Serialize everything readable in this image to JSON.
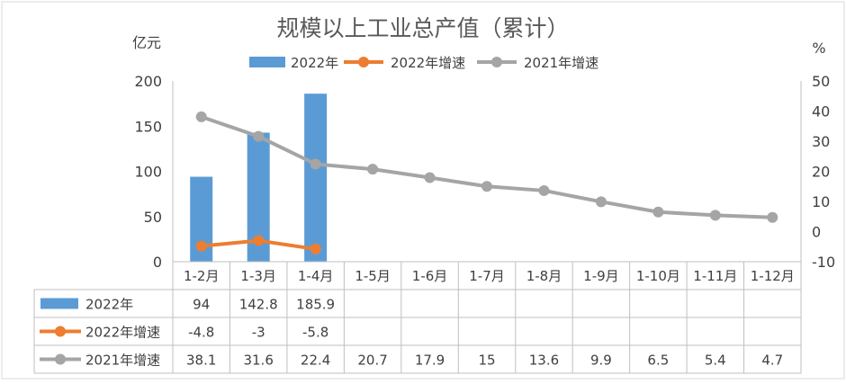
{
  "chart_data": {
    "type": "bar",
    "title": "规模以上工业总产值（累计）",
    "y_left_label": "亿元",
    "y_right_label": "%",
    "ylim_left": [
      0,
      200
    ],
    "ylim_right": [
      -10,
      50
    ],
    "yticks_left": [
      0,
      50,
      100,
      150,
      200
    ],
    "yticks_right": [
      -10,
      0,
      10,
      20,
      30,
      40,
      50
    ],
    "categories": [
      "1-2月",
      "1-3月",
      "1-4月",
      "1-5月",
      "1-6月",
      "1-7月",
      "1-8月",
      "1-9月",
      "1-10月",
      "1-11月",
      "1-12月"
    ],
    "series": [
      {
        "name": "2022年",
        "type": "bar",
        "axis": "left",
        "color": "#5B9BD5",
        "values": [
          94,
          142.8,
          185.9,
          null,
          null,
          null,
          null,
          null,
          null,
          null,
          null
        ],
        "display": [
          "94",
          "142.8",
          "185.9",
          "",
          "",
          "",
          "",
          "",
          "",
          "",
          ""
        ]
      },
      {
        "name": "2022年增速",
        "type": "line",
        "axis": "right",
        "color": "#ED7D31",
        "values": [
          -4.8,
          -3,
          -5.8,
          null,
          null,
          null,
          null,
          null,
          null,
          null,
          null
        ],
        "display": [
          "-4.8",
          "-3",
          "-5.8",
          "",
          "",
          "",
          "",
          "",
          "",
          "",
          ""
        ]
      },
      {
        "name": "2021年增速",
        "type": "line",
        "axis": "right",
        "color": "#A5A5A5",
        "values": [
          38.1,
          31.6,
          22.4,
          20.7,
          17.9,
          15,
          13.6,
          9.9,
          6.5,
          5.4,
          4.7
        ],
        "display": [
          "38.1",
          "31.6",
          "22.4",
          "20.7",
          "17.9",
          "15",
          "13.6",
          "9.9",
          "6.5",
          "5.4",
          "4.7"
        ]
      }
    ],
    "legend_position": "top",
    "data_table": true,
    "grid": false
  }
}
